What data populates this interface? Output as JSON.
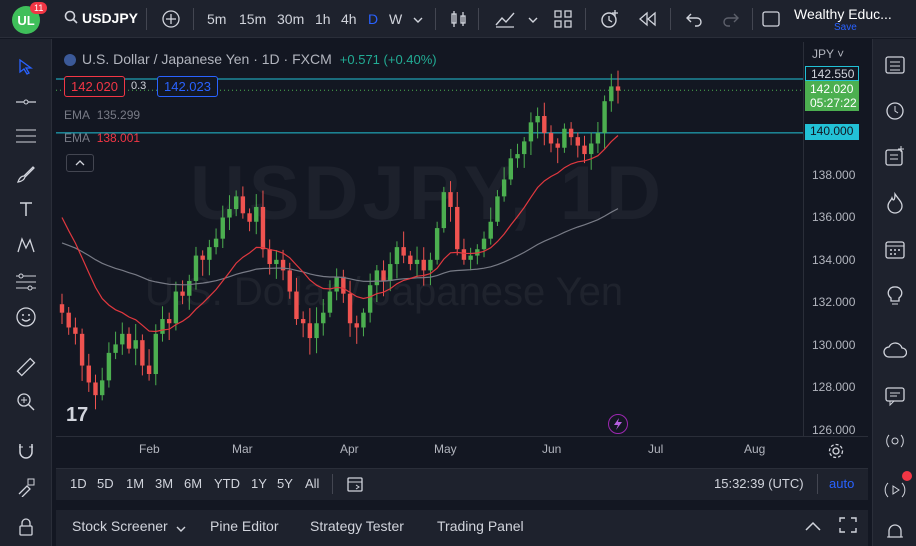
{
  "header": {
    "badge_count": "11",
    "symbol": "USDJPY",
    "timeframes": [
      "5m",
      "15m",
      "30m",
      "1h",
      "4h",
      "D",
      "W"
    ],
    "active_timeframe": "D",
    "account_name": "Wealthy Educ...",
    "save_label": "Save"
  },
  "chart": {
    "title": "U.S. Dollar / Japanese Yen · 1D · FXCM",
    "change": "+0.571 (+0.40%)",
    "sell_price": "142.020",
    "spread": "0.3",
    "buy_price": "142.023",
    "ema1_label": "EMA",
    "ema1_value": "135.299",
    "ema2_label": "EMA",
    "ema2_value": "138.001",
    "currency": "JPY",
    "high_price_tag": "142.550",
    "current_price_tag": "142.020",
    "countdown": "05:27:22",
    "level_tag": "140.000",
    "watermark_ticker": "USDJPY, 1D",
    "watermark_name": "U.S. Dollar / Japanese Yen",
    "price_ticks": [
      "138.000",
      "136.000",
      "134.000",
      "132.000",
      "130.000",
      "128.000",
      "126.000"
    ],
    "time_ticks": [
      "Feb",
      "Mar",
      "Apr",
      "May",
      "Jun",
      "Jul",
      "Aug"
    ],
    "colors": {
      "up": "#26a69a",
      "up_fill": "#4caf50",
      "down": "#ef5350",
      "ema_fast": "#e0383f",
      "ema_slow": "#787b86",
      "level_line": "#22c1d6"
    }
  },
  "chart_data": {
    "type": "candlestick",
    "x_range": [
      "Jan",
      "Aug"
    ],
    "ylim": [
      126,
      143
    ],
    "horizontal_levels": [
      142.55,
      140.0
    ],
    "series": [
      {
        "name": "EMA",
        "values_note": "slow EMA",
        "last": 135.299
      },
      {
        "name": "EMA",
        "values_note": "fast EMA",
        "last": 138.001
      }
    ],
    "close_path": [
      131.5,
      130.8,
      130.5,
      129.0,
      128.2,
      127.6,
      128.3,
      129.6,
      130.0,
      130.5,
      129.8,
      130.2,
      129.0,
      128.6,
      130.5,
      131.2,
      131.0,
      132.5,
      132.3,
      133.0,
      134.2,
      134.0,
      134.6,
      135.0,
      136.0,
      136.4,
      137.0,
      136.2,
      135.8,
      136.5,
      134.5,
      133.8,
      134.0,
      133.5,
      132.5,
      131.2,
      131.0,
      130.3,
      131.0,
      131.5,
      132.5,
      133.2,
      132.4,
      131.0,
      130.8,
      131.5,
      132.8,
      133.5,
      133.0,
      133.8,
      134.6,
      134.2,
      133.8,
      134.0,
      133.5,
      134.0,
      135.5,
      137.2,
      136.5,
      134.5,
      134.0,
      134.2,
      134.5,
      135.0,
      135.8,
      137.0,
      137.8,
      138.8,
      139.0,
      139.6,
      140.5,
      140.8,
      140.0,
      139.5,
      139.3,
      140.2,
      139.8,
      139.4,
      139.0,
      139.5,
      140.0,
      141.5,
      142.2,
      142.0
    ]
  },
  "range_bar": {
    "ranges": [
      "1D",
      "5D",
      "1M",
      "3M",
      "6M",
      "YTD",
      "1Y",
      "5Y",
      "All"
    ],
    "clock": "15:32:39 (UTC)",
    "auto_label": "auto"
  },
  "bottom_panel": {
    "tabs": [
      "Stock Screener",
      "Pine Editor",
      "Strategy Tester",
      "Trading Panel"
    ]
  }
}
